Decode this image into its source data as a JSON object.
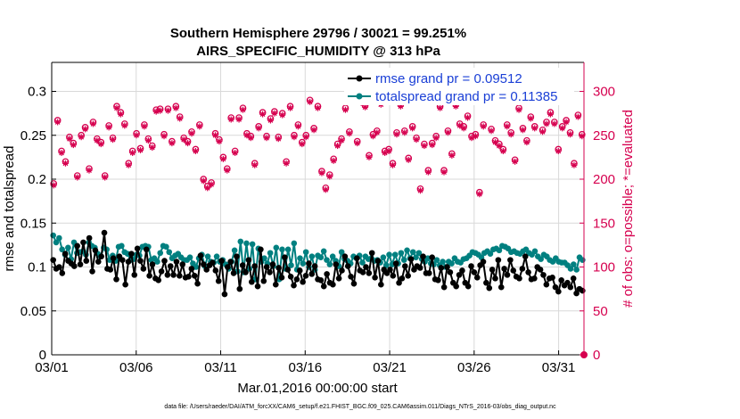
{
  "title_line1": "Southern Hemisphere 29796 / 30021 = 99.251%",
  "title_line2": "AIRS_SPECIFIC_HUMIDITY @ 313 hPa",
  "xlabel": "Mar.01,2016 00:00:00 start",
  "ylabel_left": "rmse and totalspread",
  "ylabel_right": "# of obs: o=possible; *=evaluated",
  "footnote": "data file: /Users/raeder/DAI/ATM_forcXX/CAM6_setup/f.e21.FHIST_BGC.f09_025.CAM6assim.011/Diags_NTrS_2016-03/obs_diag_output.nc",
  "legend": [
    {
      "label": "rmse grand pr = 0.09512",
      "color": "#000000"
    },
    {
      "label": "totalspread grand pr = 0.11385",
      "color": "#008080"
    }
  ],
  "colors": {
    "rmse": "#000000",
    "spread": "#008080",
    "obs": "#d6004f",
    "obs_axis": "#d6004f",
    "grid": "#d9d9d9"
  },
  "chart_data": {
    "type": "line",
    "title": "Southern Hemisphere 29796 / 30021 = 99.251%  AIRS_SPECIFIC_HUMIDITY @ 313 hPa",
    "xlabel": "Mar.01,2016 00:00:00 start",
    "ylabel": "rmse and totalspread",
    "y2label": "# of obs: o=possible; *=evaluated",
    "x_ticks": [
      "03/01",
      "03/06",
      "03/11",
      "03/16",
      "03/21",
      "03/26",
      "03/31"
    ],
    "x_tick_days": [
      0,
      5,
      10,
      15,
      20,
      25,
      30
    ],
    "xlim_days": [
      0,
      31.5
    ],
    "y_ticks": [
      "0",
      "0.05",
      "0.1",
      "0.15",
      "0.2",
      "0.25",
      "0.3"
    ],
    "ylim": [
      0,
      0.333
    ],
    "y2_ticks": [
      "0",
      "50",
      "100",
      "150",
      "200",
      "250",
      "300"
    ],
    "y2lim": [
      0,
      333
    ],
    "grid": true,
    "legend_position": "top-right",
    "series": [
      {
        "name": "rmse grand pr = 0.09512",
        "axis": "left",
        "marker": "circle",
        "values": [
          0.108,
          0.098,
          0.1,
          0.093,
          0.115,
          0.107,
          0.104,
          0.101,
          0.124,
          0.103,
          0.128,
          0.107,
          0.133,
          0.095,
          0.119,
          0.106,
          0.112,
          0.139,
          0.098,
          0.097,
          0.11,
          0.086,
          0.112,
          0.108,
          0.08,
          0.106,
          0.115,
          0.091,
          0.121,
          0.107,
          0.098,
          0.12,
          0.09,
          0.103,
          0.087,
          0.085,
          0.095,
          0.107,
          0.091,
          0.101,
          0.091,
          0.106,
          0.09,
          0.103,
          0.088,
          0.089,
          0.098,
          0.09,
          0.081,
          0.113,
          0.103,
          0.097,
          0.102,
          0.105,
          0.096,
          0.084,
          0.107,
          0.069,
          0.1,
          0.106,
          0.093,
          0.112,
          0.075,
          0.102,
          0.094,
          0.108,
          0.083,
          0.101,
          0.078,
          0.12,
          0.084,
          0.1,
          0.094,
          0.103,
          0.08,
          0.099,
          0.088,
          0.111,
          0.097,
          0.089,
          0.079,
          0.086,
          0.096,
          0.083,
          0.09,
          0.104,
          0.092,
          0.101,
          0.086,
          0.085,
          0.078,
          0.092,
          0.082,
          0.08,
          0.103,
          0.087,
          0.096,
          0.112,
          0.101,
          0.089,
          0.081,
          0.11,
          0.096,
          0.094,
          0.1,
          0.093,
          0.116,
          0.088,
          0.107,
          0.08,
          0.097,
          0.093,
          0.097,
          0.09,
          0.104,
          0.082,
          0.087,
          0.101,
          0.09,
          0.109,
          0.097,
          0.101,
          0.099,
          0.112,
          0.093,
          0.093,
          0.111,
          0.086,
          0.085,
          0.099,
          0.077,
          0.1,
          0.094,
          0.082,
          0.078,
          0.091,
          0.096,
          0.082,
          0.078,
          0.101,
          0.094,
          0.088,
          0.102,
          0.106,
          0.082,
          0.076,
          0.097,
          0.087,
          0.108,
          0.077,
          0.098,
          0.091,
          0.108,
          0.096,
          0.089,
          0.087,
          0.098,
          0.112,
          0.094,
          0.086,
          0.087,
          0.1,
          0.097,
          0.091,
          0.08,
          0.087,
          0.088,
          0.077,
          0.072,
          0.085,
          0.079,
          0.082,
          0.077,
          0.087,
          0.07,
          0.075,
          0.073
        ]
      },
      {
        "name": "totalspread grand pr = 0.11385",
        "axis": "left",
        "marker": "circle",
        "values": [
          0.136,
          0.128,
          0.133,
          0.12,
          0.114,
          0.122,
          0.109,
          0.128,
          0.116,
          0.117,
          0.118,
          0.114,
          0.128,
          0.124,
          0.122,
          0.115,
          0.112,
          0.122,
          0.12,
          0.108,
          0.113,
          0.107,
          0.123,
          0.124,
          0.117,
          0.115,
          0.108,
          0.109,
          0.114,
          0.113,
          0.123,
          0.124,
          0.123,
          0.108,
          0.11,
          0.106,
          0.116,
          0.124,
          0.123,
          0.117,
          0.11,
          0.113,
          0.115,
          0.111,
          0.108,
          0.108,
          0.111,
          0.104,
          0.1,
          0.11,
          0.114,
          0.101,
          0.112,
          0.106,
          0.105,
          0.112,
          0.106,
          0.108,
          0.103,
          0.098,
          0.106,
          0.119,
          0.095,
          0.129,
          0.094,
          0.127,
          0.098,
          0.126,
          0.086,
          0.121,
          0.106,
          0.11,
          0.104,
          0.116,
          0.101,
          0.122,
          0.086,
          0.12,
          0.098,
          0.12,
          0.102,
          0.127,
          0.097,
          0.11,
          0.104,
          0.117,
          0.1,
          0.112,
          0.097,
          0.113,
          0.111,
          0.118,
          0.108,
          0.103,
          0.112,
          0.107,
          0.101,
          0.117,
          0.109,
          0.107,
          0.104,
          0.112,
          0.11,
          0.113,
          0.105,
          0.112,
          0.109,
          0.11,
          0.107,
          0.108,
          0.105,
          0.111,
          0.102,
          0.114,
          0.103,
          0.114,
          0.104,
          0.116,
          0.108,
          0.119,
          0.11,
          0.117,
          0.111,
          0.116,
          0.109,
          0.106,
          0.11,
          0.104,
          0.103,
          0.108,
          0.102,
          0.106,
          0.1,
          0.106,
          0.104,
          0.11,
          0.106,
          0.105,
          0.109,
          0.11,
          0.113,
          0.117,
          0.116,
          0.114,
          0.111,
          0.116,
          0.118,
          0.115,
          0.12,
          0.121,
          0.119,
          0.124,
          0.123,
          0.121,
          0.117,
          0.118,
          0.116,
          0.115,
          0.118,
          0.12,
          0.116,
          0.114,
          0.118,
          0.112,
          0.109,
          0.114,
          0.112,
          0.108,
          0.106,
          0.11,
          0.106,
          0.105,
          0.105,
          0.102,
          0.098,
          0.103,
          0.097,
          0.111,
          0.108
        ]
      },
      {
        "name": "obs possible",
        "axis": "right",
        "marker": "o",
        "values": [
          195,
          267,
          232,
          220,
          248,
          241,
          204,
          250,
          259,
          212,
          265,
          246,
          242,
          204,
          261,
          247,
          283,
          276,
          263,
          218,
          232,
          252,
          235,
          262,
          246,
          238,
          279,
          280,
          251,
          280,
          243,
          283,
          271,
          247,
          243,
          254,
          234,
          262,
          200,
          192,
          196,
          252,
          245,
          225,
          212,
          270,
          232,
          270,
          281,
          252,
          249,
          218,
          260,
          276,
          249,
          269,
          277,
          248,
          275,
          220,
          283,
          250,
          262,
          242,
          250,
          290,
          258,
          283,
          209,
          190,
          205,
          223,
          240,
          246,
          281,
          254,
          296,
          243,
          289,
          284,
          227,
          251,
          255,
          287,
          232,
          234,
          218,
          253,
          285,
          255,
          224,
          260,
          247,
          189,
          240,
          210,
          241,
          249,
          283,
          210,
          255,
          229,
          285,
          263,
          260,
          272,
          249,
          251,
          185,
          262,
          295,
          257,
          244,
          240,
          234,
          262,
          253,
          222,
          281,
          258,
          244,
          271,
          260,
          294,
          256,
          265,
          276,
          265,
          234,
          260,
          267,
          253,
          218,
          273,
          251
        ]
      },
      {
        "name": "obs evaluated",
        "axis": "right",
        "marker": "*",
        "values": [
          193,
          265,
          230,
          218,
          246,
          239,
          202,
          248,
          257,
          210,
          263,
          244,
          240,
          202,
          259,
          245,
          281,
          274,
          261,
          216,
          230,
          250,
          233,
          260,
          244,
          236,
          277,
          278,
          249,
          278,
          241,
          281,
          269,
          245,
          241,
          252,
          232,
          260,
          198,
          190,
          194,
          250,
          243,
          223,
          210,
          268,
          230,
          268,
          279,
          250,
          247,
          216,
          258,
          274,
          247,
          267,
          275,
          246,
          273,
          218,
          281,
          248,
          260,
          240,
          248,
          288,
          256,
          281,
          207,
          188,
          203,
          221,
          238,
          244,
          279,
          252,
          294,
          241,
          287,
          282,
          225,
          249,
          253,
          285,
          230,
          232,
          216,
          251,
          283,
          253,
          222,
          258,
          245,
          187,
          238,
          208,
          239,
          247,
          281,
          208,
          253,
          227,
          283,
          261,
          258,
          270,
          247,
          249,
          183,
          260,
          293,
          255,
          242,
          238,
          232,
          260,
          251,
          220,
          279,
          256,
          242,
          269,
          258,
          292,
          254,
          263,
          274,
          263,
          232,
          258,
          265,
          251,
          216,
          271,
          249
        ]
      }
    ]
  }
}
